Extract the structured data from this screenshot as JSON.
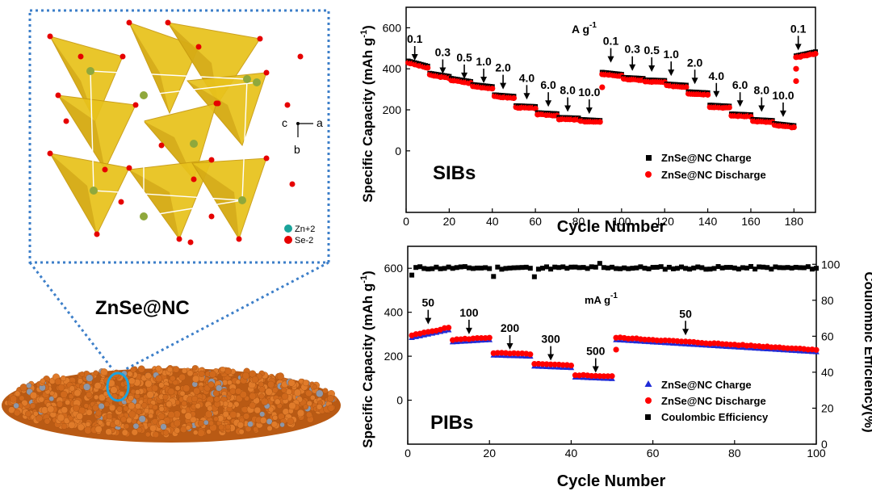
{
  "colors": {
    "charge_sib": "#000000",
    "discharge": "#ff0000",
    "charge_pib": "#1f2bd6",
    "ce": "#000000",
    "tetra": "#e8c21c",
    "tetra_dark": "#c89a10",
    "se": "#e60000",
    "zn": "#8fa83c",
    "particle": "#e07b2a",
    "dotted": "#3d7fc9"
  },
  "structure": {
    "axis_c": "c",
    "axis_a": "a",
    "axis_b": "b",
    "legend_zn": "Zn+2",
    "legend_se": "Se-2",
    "caption": "ZnSe@NC"
  },
  "chart_data": [
    {
      "type": "scatter",
      "id": "sib",
      "tag": "SIBs",
      "xlabel": "Cycle Number",
      "ylabel": "Specific Capacity (mAh g",
      "ylabel_sup": "-1",
      "ylabel_end": ")",
      "xlim": [
        0,
        190
      ],
      "ylim": [
        -300,
        700
      ],
      "xticks": [
        0,
        20,
        40,
        60,
        80,
        100,
        120,
        140,
        160,
        180
      ],
      "yticks": [
        0,
        200,
        400,
        600
      ],
      "unit_label": "A g",
      "unit_sup": "-1",
      "legend": [
        "ZnSe@NC Charge",
        "ZnSe@NC Discharge"
      ],
      "annotations": [
        {
          "text": "0.1",
          "x": 4,
          "y": 440
        },
        {
          "text": "0.3",
          "x": 17,
          "y": 375
        },
        {
          "text": "0.5",
          "x": 27,
          "y": 350
        },
        {
          "text": "1.0",
          "x": 36,
          "y": 330
        },
        {
          "text": "2.0",
          "x": 45,
          "y": 300
        },
        {
          "text": "4.0",
          "x": 56,
          "y": 250
        },
        {
          "text": "6.0",
          "x": 66,
          "y": 215
        },
        {
          "text": "8.0",
          "x": 75,
          "y": 190
        },
        {
          "text": "10.0",
          "x": 85,
          "y": 180
        },
        {
          "text": "0.1",
          "x": 95,
          "y": 430
        },
        {
          "text": "0.3",
          "x": 105,
          "y": 390
        },
        {
          "text": "0.5",
          "x": 114,
          "y": 385
        },
        {
          "text": "1.0",
          "x": 123,
          "y": 365
        },
        {
          "text": "2.0",
          "x": 134,
          "y": 325
        },
        {
          "text": "4.0",
          "x": 144,
          "y": 260
        },
        {
          "text": "6.0",
          "x": 155,
          "y": 215
        },
        {
          "text": "8.0",
          "x": 165,
          "y": 190
        },
        {
          "text": "10.0",
          "x": 175,
          "y": 165
        },
        {
          "text": "0.1",
          "x": 182,
          "y": 490
        }
      ],
      "segments": [
        {
          "from": 1,
          "to": 10,
          "start": 430,
          "end": 405
        },
        {
          "from": 11,
          "to": 20,
          "start": 370,
          "end": 355
        },
        {
          "from": 21,
          "to": 30,
          "start": 345,
          "end": 330
        },
        {
          "from": 31,
          "to": 40,
          "start": 315,
          "end": 305
        },
        {
          "from": 41,
          "to": 50,
          "start": 265,
          "end": 258
        },
        {
          "from": 51,
          "to": 60,
          "start": 212,
          "end": 208
        },
        {
          "from": 61,
          "to": 70,
          "start": 178,
          "end": 173
        },
        {
          "from": 71,
          "to": 80,
          "start": 155,
          "end": 152
        },
        {
          "from": 81,
          "to": 90,
          "start": 145,
          "end": 140
        },
        {
          "from": 91,
          "to": 100,
          "start": 375,
          "end": 365
        },
        {
          "from": 101,
          "to": 110,
          "start": 350,
          "end": 345
        },
        {
          "from": 111,
          "to": 120,
          "start": 338,
          "end": 335
        },
        {
          "from": 121,
          "to": 130,
          "start": 318,
          "end": 312
        },
        {
          "from": 131,
          "to": 140,
          "start": 280,
          "end": 275
        },
        {
          "from": 141,
          "to": 150,
          "start": 215,
          "end": 210
        },
        {
          "from": 151,
          "to": 160,
          "start": 172,
          "end": 168
        },
        {
          "from": 161,
          "to": 170,
          "start": 145,
          "end": 140
        },
        {
          "from": 171,
          "to": 180,
          "start": 125,
          "end": 115
        },
        {
          "from": 181,
          "to": 190,
          "start": 455,
          "end": 475
        }
      ]
    },
    {
      "type": "scatter",
      "id": "pib",
      "tag": "PIBs",
      "xlabel": "Cycle Number",
      "ylabel": "Specific Capacity (mAh g",
      "ylabel_sup": "-1",
      "ylabel_end": ")",
      "y2label": "Coulombic Efficiency(%)",
      "xlim": [
        0,
        100
      ],
      "ylim": [
        -200,
        700
      ],
      "y2lim": [
        0,
        110
      ],
      "xticks": [
        0,
        20,
        40,
        60,
        80,
        100
      ],
      "yticks": [
        0,
        200,
        400,
        600
      ],
      "y2ticks": [
        0,
        20,
        40,
        60,
        80,
        100
      ],
      "unit_label": "mA g",
      "unit_sup": "-1",
      "legend": [
        "ZnSe@NC Charge",
        "ZnSe@NC Discharge",
        "Coulombic Efficiency"
      ],
      "annotations": [
        {
          "text": "50",
          "x": 5,
          "y": 345
        },
        {
          "text": "100",
          "x": 15,
          "y": 300
        },
        {
          "text": "200",
          "x": 25,
          "y": 230
        },
        {
          "text": "300",
          "x": 35,
          "y": 180
        },
        {
          "text": "500",
          "x": 46,
          "y": 125
        },
        {
          "text": "50",
          "x": 68,
          "y": 295
        }
      ],
      "segments": [
        {
          "from": 1,
          "to": 10,
          "start": 295,
          "end": 330
        },
        {
          "from": 11,
          "to": 20,
          "start": 275,
          "end": 285
        },
        {
          "from": 21,
          "to": 30,
          "start": 215,
          "end": 210
        },
        {
          "from": 31,
          "to": 40,
          "start": 165,
          "end": 158
        },
        {
          "from": 41,
          "to": 50,
          "start": 115,
          "end": 108
        },
        {
          "from": 51,
          "to": 100,
          "start": 285,
          "end": 230
        }
      ],
      "ce": {
        "first": 94,
        "steady": 98
      }
    }
  ]
}
